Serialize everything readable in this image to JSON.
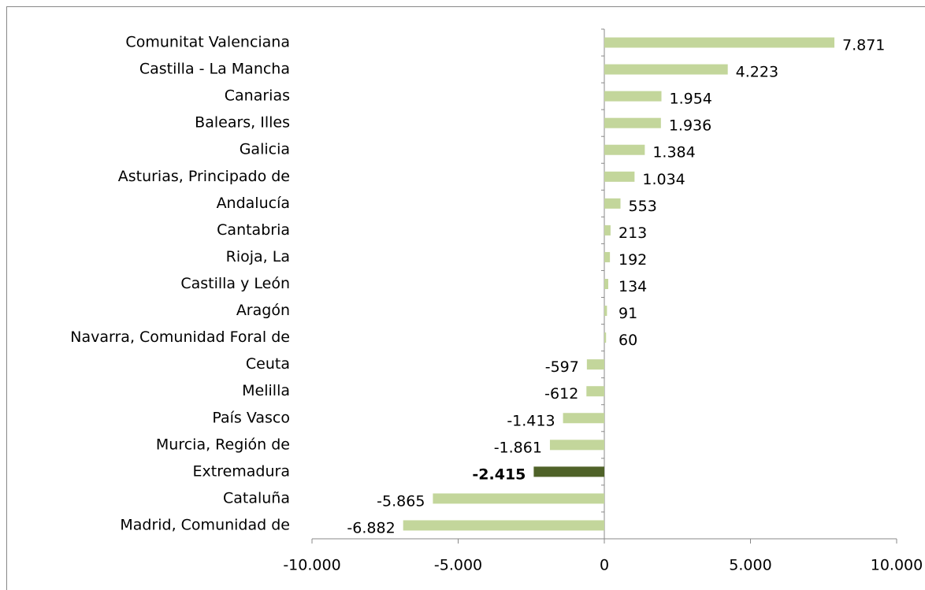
{
  "chart_data": {
    "type": "bar",
    "orientation": "horizontal",
    "categories": [
      "Comunitat Valenciana",
      "Castilla - La Mancha",
      "Canarias",
      "Balears, Illes",
      "Galicia",
      "Asturias, Principado de",
      "Andalucía",
      "Cantabria",
      "Rioja, La",
      "Castilla y León",
      "Aragón",
      "Navarra, Comunidad Foral de",
      "Ceuta",
      "Melilla",
      "País Vasco",
      "Murcia, Región de",
      "Extremadura",
      "Cataluña",
      "Madrid, Comunidad de"
    ],
    "values": [
      7871,
      4223,
      1954,
      1936,
      1384,
      1034,
      553,
      213,
      192,
      134,
      91,
      60,
      -597,
      -612,
      -1413,
      -1861,
      -2415,
      -5865,
      -6882
    ],
    "value_labels": [
      "7.871",
      "4.223",
      "1.954",
      "1.936",
      "1.384",
      "1.034",
      "553",
      "213",
      "192",
      "134",
      "91",
      "60",
      "-597",
      "-612",
      "-1.413",
      "-1.861",
      "-2.415",
      "-5.865",
      "-6.882"
    ],
    "color": "#c3d69b",
    "bar_colors": [
      "#c3d69b",
      "#c3d69b",
      "#c3d69b",
      "#c3d69b",
      "#c3d69b",
      "#c3d69b",
      "#c3d69b",
      "#c3d69b",
      "#c3d69b",
      "#c3d69b",
      "#c3d69b",
      "#c3d69b",
      "#c3d69b",
      "#c3d69b",
      "#c3d69b",
      "#c3d69b",
      "#4f6228",
      "#c3d69b",
      "#c3d69b"
    ],
    "xlim": [
      -10000,
      10000
    ],
    "xticks": [
      {
        "value": -10000,
        "label": "-10.000"
      },
      {
        "value": -5000,
        "label": "-5.000"
      },
      0,
      {
        "value": 5000,
        "label": "5.000"
      },
      {
        "value": 10000,
        "label": "10.000"
      }
    ],
    "grid": false
  }
}
